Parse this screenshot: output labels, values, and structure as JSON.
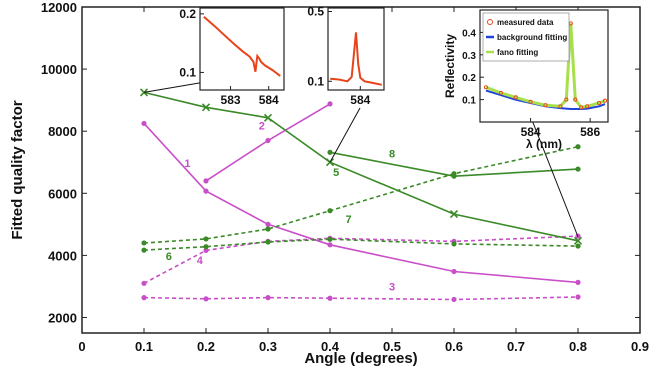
{
  "chart_data": {
    "type": "line",
    "xlabel": "Angle (degrees)",
    "ylabel": "Fitted quality factor",
    "xlim": [
      0,
      0.9
    ],
    "ylim": [
      1500,
      12000
    ],
    "xticks": [
      "0",
      "0.1",
      "0.2",
      "0.3",
      "0.4",
      "0.5",
      "0.6",
      "0.7",
      "0.8",
      "0.9"
    ],
    "yticks": [
      "2000",
      "4000",
      "6000",
      "8000",
      "10000",
      "12000"
    ],
    "grid": false,
    "series": [
      {
        "name": "1",
        "color": "#c94fc9",
        "dashed": false,
        "marker": "dot",
        "x": [
          0.1,
          0.2,
          0.3,
          0.4,
          0.6,
          0.8
        ],
        "y": [
          8250,
          6070,
          5000,
          4340,
          3480,
          3130
        ],
        "label_at": [
          0.17,
          6850
        ]
      },
      {
        "name": "2",
        "color": "#c94fc9",
        "dashed": false,
        "marker": "dot",
        "x": [
          0.2,
          0.3,
          0.4
        ],
        "y": [
          6400,
          7700,
          8880
        ],
        "label_at": [
          0.29,
          8050
        ]
      },
      {
        "name": "3",
        "color": "#c94fc9",
        "dashed": true,
        "marker": "dot",
        "x": [
          0.1,
          0.2,
          0.3,
          0.4,
          0.6,
          0.8
        ],
        "y": [
          2640,
          2600,
          2640,
          2620,
          2580,
          2660
        ],
        "label_at": [
          0.5,
          2870
        ]
      },
      {
        "name": "4",
        "color": "#c94fc9",
        "dashed": true,
        "marker": "dot",
        "x": [
          0.1,
          0.2,
          0.3,
          0.4,
          0.6,
          0.8
        ],
        "y": [
          3100,
          4160,
          4450,
          4550,
          4450,
          4620
        ],
        "label_at": [
          0.19,
          3730
        ]
      },
      {
        "name": "5",
        "color": "#3a8a28",
        "dashed": false,
        "marker": "x",
        "x": [
          0.1,
          0.2,
          0.3,
          0.4,
          0.6,
          0.8
        ],
        "y": [
          9250,
          8770,
          8430,
          7000,
          5330,
          4470
        ],
        "label_at": [
          0.41,
          6550
        ]
      },
      {
        "name": "6",
        "color": "#3a8a28",
        "dashed": true,
        "marker": "dot",
        "x": [
          0.1,
          0.2,
          0.3,
          0.4,
          0.6,
          0.8
        ],
        "y": [
          4170,
          4280,
          4430,
          4520,
          4370,
          4300
        ],
        "label_at": [
          0.14,
          3850
        ]
      },
      {
        "name": "7",
        "color": "#3a8a28",
        "dashed": true,
        "marker": "dot",
        "x": [
          0.1,
          0.2,
          0.3,
          0.4,
          0.6,
          0.8
        ],
        "y": [
          4400,
          4530,
          4850,
          5440,
          6630,
          7500
        ],
        "label_at": [
          0.43,
          5050
        ]
      },
      {
        "name": "8",
        "color": "#3a8a28",
        "dashed": false,
        "marker": "dot",
        "x": [
          0.4,
          0.6,
          0.8
        ],
        "y": [
          7320,
          6550,
          6780
        ],
        "label_at": [
          0.5,
          7150
        ]
      }
    ],
    "insets": [
      {
        "id": "inset-1",
        "type": "line",
        "color": "#e8441c",
        "xticks": [
          "583",
          "584"
        ],
        "yticks": [
          "0.2",
          "0.1"
        ],
        "x": [
          582.3,
          582.6,
          582.9,
          583.1,
          583.3,
          583.5,
          583.6,
          583.65,
          583.7,
          583.75,
          583.8,
          583.9,
          584.1,
          584.3
        ],
        "y": [
          0.195,
          0.178,
          0.16,
          0.148,
          0.137,
          0.127,
          0.118,
          0.101,
          0.128,
          0.124,
          0.118,
          0.112,
          0.104,
          0.094
        ]
      },
      {
        "id": "inset-2",
        "type": "line",
        "color": "#e8441c",
        "xticks": [
          "584"
        ],
        "yticks": [
          "0.5",
          "0.1"
        ],
        "x": [
          583.3,
          583.5,
          583.7,
          583.8,
          583.85,
          583.9,
          583.95,
          584.0,
          584.1,
          584.3,
          584.5
        ],
        "y": [
          0.115,
          0.11,
          0.1,
          0.125,
          0.25,
          0.38,
          0.2,
          0.12,
          0.1,
          0.09,
          0.08
        ]
      },
      {
        "id": "inset-3",
        "type": "line",
        "ylabel": "Reflectivity",
        "xlabel": "λ (nm)",
        "xticks": [
          "584",
          "586"
        ],
        "yticks": [
          "0.4",
          "0.3",
          "0.2",
          "0.1"
        ],
        "legend": [
          {
            "label": "measured data",
            "color": "#e8441c",
            "style": "marker"
          },
          {
            "label": "background fitting",
            "color": "#1d43d9",
            "style": "line"
          },
          {
            "label": "fano fitting",
            "color": "#a8df4c",
            "style": "line"
          }
        ],
        "x": [
          582.5,
          583,
          583.5,
          584,
          584.5,
          585,
          585.2,
          585.35,
          585.5,
          585.7,
          585.9,
          586.3,
          586.5
        ],
        "y_measured": [
          0.155,
          0.13,
          0.11,
          0.09,
          0.075,
          0.07,
          0.1,
          0.44,
          0.1,
          0.065,
          0.07,
          0.085,
          0.095
        ],
        "y_background": [
          0.14,
          0.12,
          0.1,
          0.085,
          0.07,
          0.062,
          0.06,
          0.058,
          0.058,
          0.058,
          0.06,
          0.07,
          0.08
        ]
      }
    ]
  }
}
